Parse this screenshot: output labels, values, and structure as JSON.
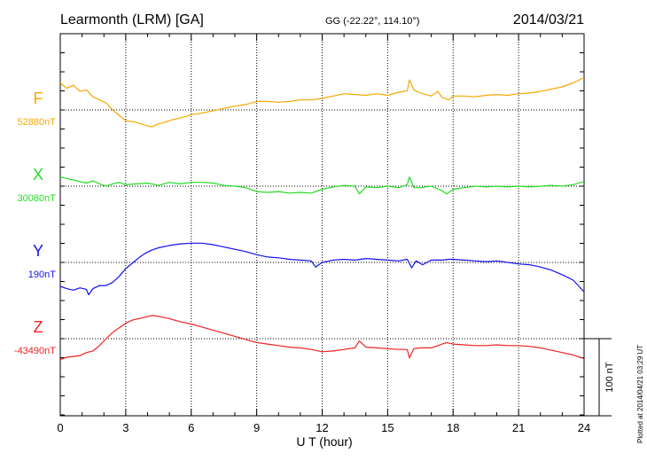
{
  "header": {
    "station": "Learmonth (LRM)  [GA]",
    "coords": "GG (-22.22°, 114.10°)",
    "date": "2014/03/21"
  },
  "plotted_note": "Plotted at 2014/04/21 03:29 UT",
  "chart_data": {
    "type": "line",
    "xlabel": "U T (hour)",
    "xlim": [
      0,
      24
    ],
    "xticks": [
      "0",
      "3",
      "6",
      "9",
      "12",
      "15",
      "18",
      "21",
      "24"
    ],
    "scale_bar": {
      "label": "100 nT",
      "value_nT": 100
    },
    "series": [
      {
        "name": "F",
        "baseline_label": "52880nT",
        "baseline_nT": 52880,
        "color": "#f5a800",
        "x": [
          0,
          0.3,
          0.6,
          0.9,
          1.2,
          1.5,
          1.8,
          2.1,
          2.4,
          2.7,
          3.0,
          3.3,
          3.6,
          3.9,
          4.2,
          4.5,
          4.8,
          5.1,
          5.4,
          5.7,
          6.0,
          6.5,
          7.0,
          7.5,
          8.0,
          8.5,
          9.0,
          9.5,
          10.0,
          10.5,
          11.0,
          11.5,
          12.0,
          12.5,
          13.0,
          13.5,
          14.0,
          14.5,
          15.0,
          15.5,
          15.9,
          16.0,
          16.2,
          16.5,
          17.0,
          17.3,
          17.5,
          17.8,
          18.0,
          18.5,
          19.0,
          19.5,
          20.0,
          20.5,
          21.0,
          21.5,
          22.0,
          22.5,
          23.0,
          23.5,
          24.0
        ],
        "y": [
          52915,
          52908,
          52912,
          52904,
          52906,
          52897,
          52893,
          52889,
          52880,
          52873,
          52866,
          52865,
          52863,
          52860,
          52858,
          52862,
          52864,
          52867,
          52869,
          52871,
          52874,
          52876,
          52879,
          52882,
          52885,
          52887,
          52891,
          52891,
          52890,
          52891,
          52893,
          52893,
          52895,
          52898,
          52901,
          52900,
          52899,
          52901,
          52899,
          52903,
          52905,
          52919,
          52906,
          52902,
          52898,
          52904,
          52896,
          52893,
          52898,
          52898,
          52897,
          52899,
          52900,
          52899,
          52901,
          52902,
          52904,
          52907,
          52910,
          52915,
          52922
        ]
      },
      {
        "name": "X",
        "baseline_label": "30080nT",
        "baseline_nT": 30080,
        "color": "#22dd22",
        "x": [
          0,
          0.3,
          0.6,
          0.9,
          1.2,
          1.5,
          1.8,
          2.1,
          2.4,
          2.7,
          3.0,
          3.5,
          4.0,
          4.5,
          5.0,
          5.5,
          6.0,
          6.5,
          7.0,
          7.5,
          8.0,
          8.5,
          9.0,
          9.5,
          10.0,
          10.5,
          11.0,
          11.5,
          12.0,
          12.5,
          13.0,
          13.5,
          13.7,
          14.0,
          14.5,
          15.0,
          15.5,
          15.9,
          16.0,
          16.2,
          16.5,
          17.0,
          17.5,
          17.7,
          18.0,
          18.5,
          19.0,
          19.5,
          20.0,
          20.5,
          21.0,
          21.5,
          22.0,
          22.5,
          23.0,
          23.5,
          24.0
        ],
        "y": [
          30092,
          30090,
          30088,
          30086,
          30084,
          30087,
          30083,
          30080,
          30083,
          30085,
          30082,
          30083,
          30084,
          30081,
          30085,
          30083,
          30085,
          30085,
          30084,
          30081,
          30080,
          30078,
          30073,
          30072,
          30073,
          30071,
          30072,
          30071,
          30076,
          30079,
          30081,
          30080,
          30070,
          30079,
          30078,
          30080,
          30078,
          30082,
          30092,
          30078,
          30078,
          30080,
          30074,
          30070,
          30076,
          30078,
          30080,
          30079,
          30080,
          30079,
          30080,
          30079,
          30080,
          30081,
          30080,
          30082,
          30086
        ]
      },
      {
        "name": "Y",
        "baseline_label": "190nT",
        "baseline_nT": 190,
        "color": "#1111ee",
        "x": [
          0,
          0.3,
          0.6,
          0.9,
          1.2,
          1.3,
          1.5,
          1.8,
          2.1,
          2.4,
          2.7,
          3.0,
          3.3,
          3.6,
          3.9,
          4.2,
          4.5,
          5.0,
          5.5,
          6.0,
          6.5,
          7.0,
          7.5,
          8.0,
          8.5,
          9.0,
          9.5,
          10.0,
          10.5,
          11.0,
          11.5,
          11.7,
          12.0,
          12.5,
          13.0,
          13.5,
          14.0,
          14.5,
          15.0,
          15.5,
          15.9,
          16.1,
          16.3,
          16.6,
          17.0,
          17.5,
          17.8,
          18.0,
          18.5,
          19.0,
          19.5,
          20.0,
          20.5,
          21.0,
          21.5,
          22.0,
          22.5,
          23.0,
          23.5,
          24.0
        ],
        "y": [
          159,
          156,
          154,
          157,
          155,
          148,
          156,
          160,
          160,
          164,
          172,
          182,
          189,
          196,
          202,
          206,
          209,
          212,
          214,
          215,
          215,
          213,
          210,
          207,
          204,
          200,
          197,
          196,
          194,
          193,
          192,
          184,
          190,
          193,
          194,
          193,
          195,
          194,
          193,
          192,
          194,
          183,
          192,
          187,
          193,
          193,
          194,
          194,
          193,
          192,
          191,
          192,
          190,
          188,
          187,
          184,
          180,
          174,
          167,
          152
        ]
      },
      {
        "name": "Z",
        "baseline_label": "-43490nT",
        "baseline_nT": -43490,
        "color": "#ee2222",
        "x": [
          0,
          0.3,
          0.6,
          0.9,
          1.2,
          1.5,
          1.8,
          2.1,
          2.4,
          2.7,
          3.0,
          3.3,
          3.6,
          3.9,
          4.2,
          4.5,
          5.0,
          5.5,
          6.0,
          6.5,
          7.0,
          7.5,
          8.0,
          8.5,
          9.0,
          9.5,
          10.0,
          10.5,
          11.0,
          11.5,
          12.0,
          12.5,
          13.0,
          13.5,
          13.7,
          14.0,
          14.5,
          15.0,
          15.5,
          15.9,
          16.0,
          16.2,
          16.5,
          17.0,
          17.5,
          17.7,
          18.0,
          18.5,
          19.0,
          19.5,
          20.0,
          20.5,
          21.0,
          21.5,
          22.0,
          22.5,
          23.0,
          23.5,
          24.0
        ],
        "y": [
          -43517,
          -43514,
          -43513,
          -43512,
          -43508,
          -43506,
          -43499,
          -43490,
          -43482,
          -43476,
          -43470,
          -43466,
          -43464,
          -43462,
          -43460,
          -43461,
          -43464,
          -43468,
          -43471,
          -43475,
          -43479,
          -43483,
          -43487,
          -43491,
          -43495,
          -43497,
          -43499,
          -43501,
          -43502,
          -43504,
          -43507,
          -43506,
          -43504,
          -43502,
          -43493,
          -43501,
          -43502,
          -43503,
          -43504,
          -43504,
          -43515,
          -43503,
          -43502,
          -43502,
          -43497,
          -43495,
          -43497,
          -43498,
          -43499,
          -43499,
          -43498,
          -43499,
          -43499,
          -43500,
          -43502,
          -43505,
          -43508,
          -43511,
          -43516
        ]
      }
    ]
  }
}
